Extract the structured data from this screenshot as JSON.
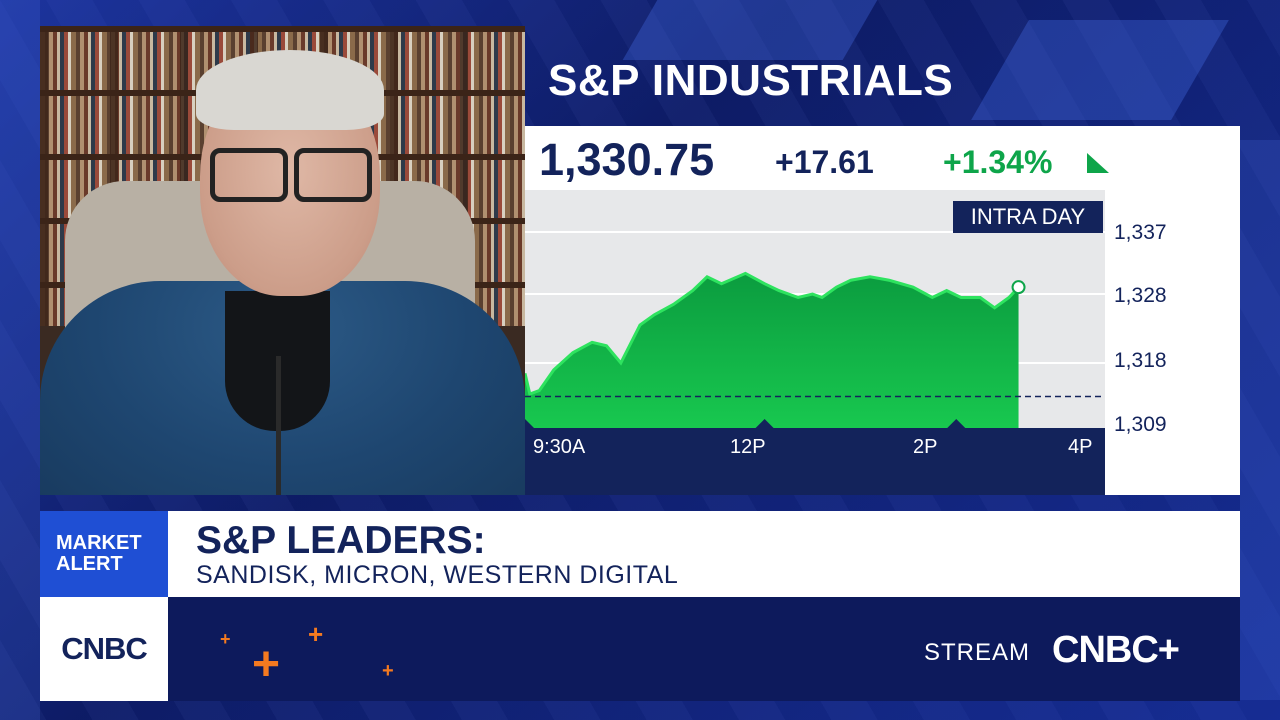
{
  "title": "S&P INDUSTRIALS",
  "quote": {
    "price": "1,330.75",
    "change": "+17.61",
    "percent": "+1.34%"
  },
  "chart": {
    "badge": "INTRA DAY",
    "y_ticks": [
      "1,337",
      "1,328",
      "1,318",
      "1,309"
    ],
    "x_ticks": [
      "9:30A",
      "12P",
      "2P",
      "4P"
    ]
  },
  "chart_data": {
    "type": "area",
    "title": "",
    "xlabel": "",
    "ylabel": "",
    "x_ticks": [
      "9:30A",
      "12P",
      "2P",
      "4P"
    ],
    "ylim": [
      1309,
      1337
    ],
    "previous_close": 1313.14,
    "series": [
      {
        "values": [
          [
            0,
            1316.5
          ],
          [
            0.05,
            1313.5
          ],
          [
            0.15,
            1314.0
          ],
          [
            0.3,
            1317.0
          ],
          [
            0.5,
            1319.5
          ],
          [
            0.7,
            1321.0
          ],
          [
            0.85,
            1320.5
          ],
          [
            1.0,
            1318.0
          ],
          [
            1.2,
            1323.5
          ],
          [
            1.35,
            1325.0
          ],
          [
            1.55,
            1326.5
          ],
          [
            1.75,
            1328.5
          ],
          [
            1.9,
            1330.5
          ],
          [
            2.05,
            1329.5
          ],
          [
            2.3,
            1331.0
          ],
          [
            2.5,
            1329.5
          ],
          [
            2.65,
            1328.5
          ],
          [
            2.85,
            1327.5
          ],
          [
            3.0,
            1328.0
          ],
          [
            3.1,
            1327.5
          ],
          [
            3.25,
            1329.0
          ],
          [
            3.4,
            1330.0
          ],
          [
            3.6,
            1330.5
          ],
          [
            3.8,
            1330.0
          ],
          [
            4.05,
            1329.0
          ],
          [
            4.25,
            1327.5
          ],
          [
            4.4,
            1328.5
          ],
          [
            4.55,
            1327.5
          ],
          [
            4.75,
            1327.5
          ],
          [
            4.9,
            1326.0
          ],
          [
            5.05,
            1327.5
          ],
          [
            5.15,
            1329.0
          ]
        ]
      }
    ],
    "grid": true,
    "legend": "none"
  },
  "alert": {
    "line1": "MARKET",
    "line2": "ALERT"
  },
  "headline": "S&P LEADERS:",
  "subline": "SANDISK, MICRON, WESTERN DIGITAL",
  "logo": "CNBC",
  "stream": {
    "label": "STREAM",
    "brand": "CNBC+"
  },
  "colors": {
    "navy": "#13235b",
    "green": "#0ea54a",
    "accent_blue": "#1f4fd4",
    "orange": "#f47a20"
  }
}
